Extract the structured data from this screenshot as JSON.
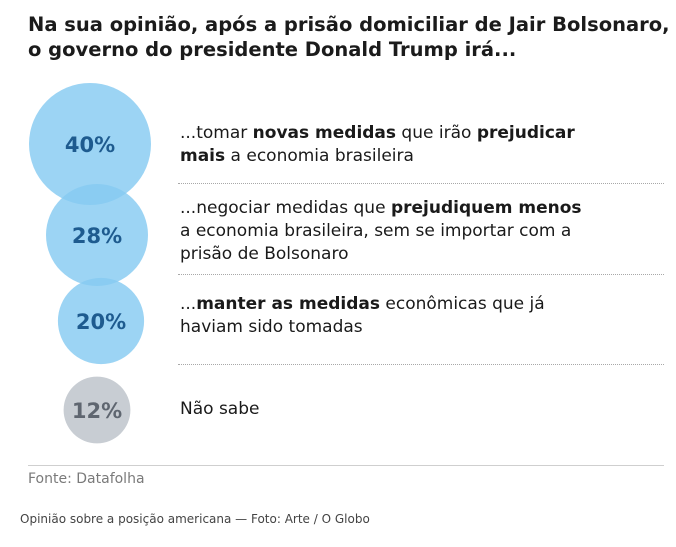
{
  "title": [
    "Na sua opinião, após a prisão domiciliar de Jair Bolsonaro,",
    "o governo do presidente Donald Trump irá..."
  ],
  "chart_data": {
    "type": "bubble",
    "unit": "%",
    "items": [
      {
        "value": 40,
        "label": "40%",
        "color": "#86cbf2",
        "text_color": "#1e5b8f",
        "answer": [
          [
            {
              "t": "...tomar ",
              "b": false
            },
            {
              "t": "novas medidas",
              "b": true
            },
            {
              "t": " que irão ",
              "b": false
            },
            {
              "t": "prejudicar",
              "b": true
            }
          ],
          [
            {
              "t": "mais",
              "b": true
            },
            {
              "t": " a economia brasileira",
              "b": false
            }
          ]
        ]
      },
      {
        "value": 28,
        "label": "28%",
        "color": "#86cbf2",
        "text_color": "#1e5b8f",
        "answer": [
          [
            {
              "t": "...negociar medidas que ",
              "b": false
            },
            {
              "t": "prejudiquem menos",
              "b": true
            }
          ],
          [
            {
              "t": "a economia brasileira, sem se importar com a",
              "b": false
            }
          ],
          [
            {
              "t": "prisão de Bolsonaro",
              "b": false
            }
          ]
        ]
      },
      {
        "value": 20,
        "label": "20%",
        "color": "#86cbf2",
        "text_color": "#1e5b8f",
        "answer": [
          [
            {
              "t": "...",
              "b": false
            },
            {
              "t": "manter as medidas",
              "b": true
            },
            {
              "t": " econômicas que já",
              "b": false
            }
          ],
          [
            {
              "t": "haviam sido tomadas",
              "b": false
            }
          ]
        ]
      },
      {
        "value": 12,
        "label": "12%",
        "color": "#c8cdd3",
        "text_color": "#5f6670",
        "answer": [
          [
            {
              "t": "Não sabe",
              "b": false
            }
          ]
        ]
      }
    ]
  },
  "source": "Fonte: Datafolha",
  "caption": "Opinião sobre a posição americana — Foto: Arte / O Globo"
}
